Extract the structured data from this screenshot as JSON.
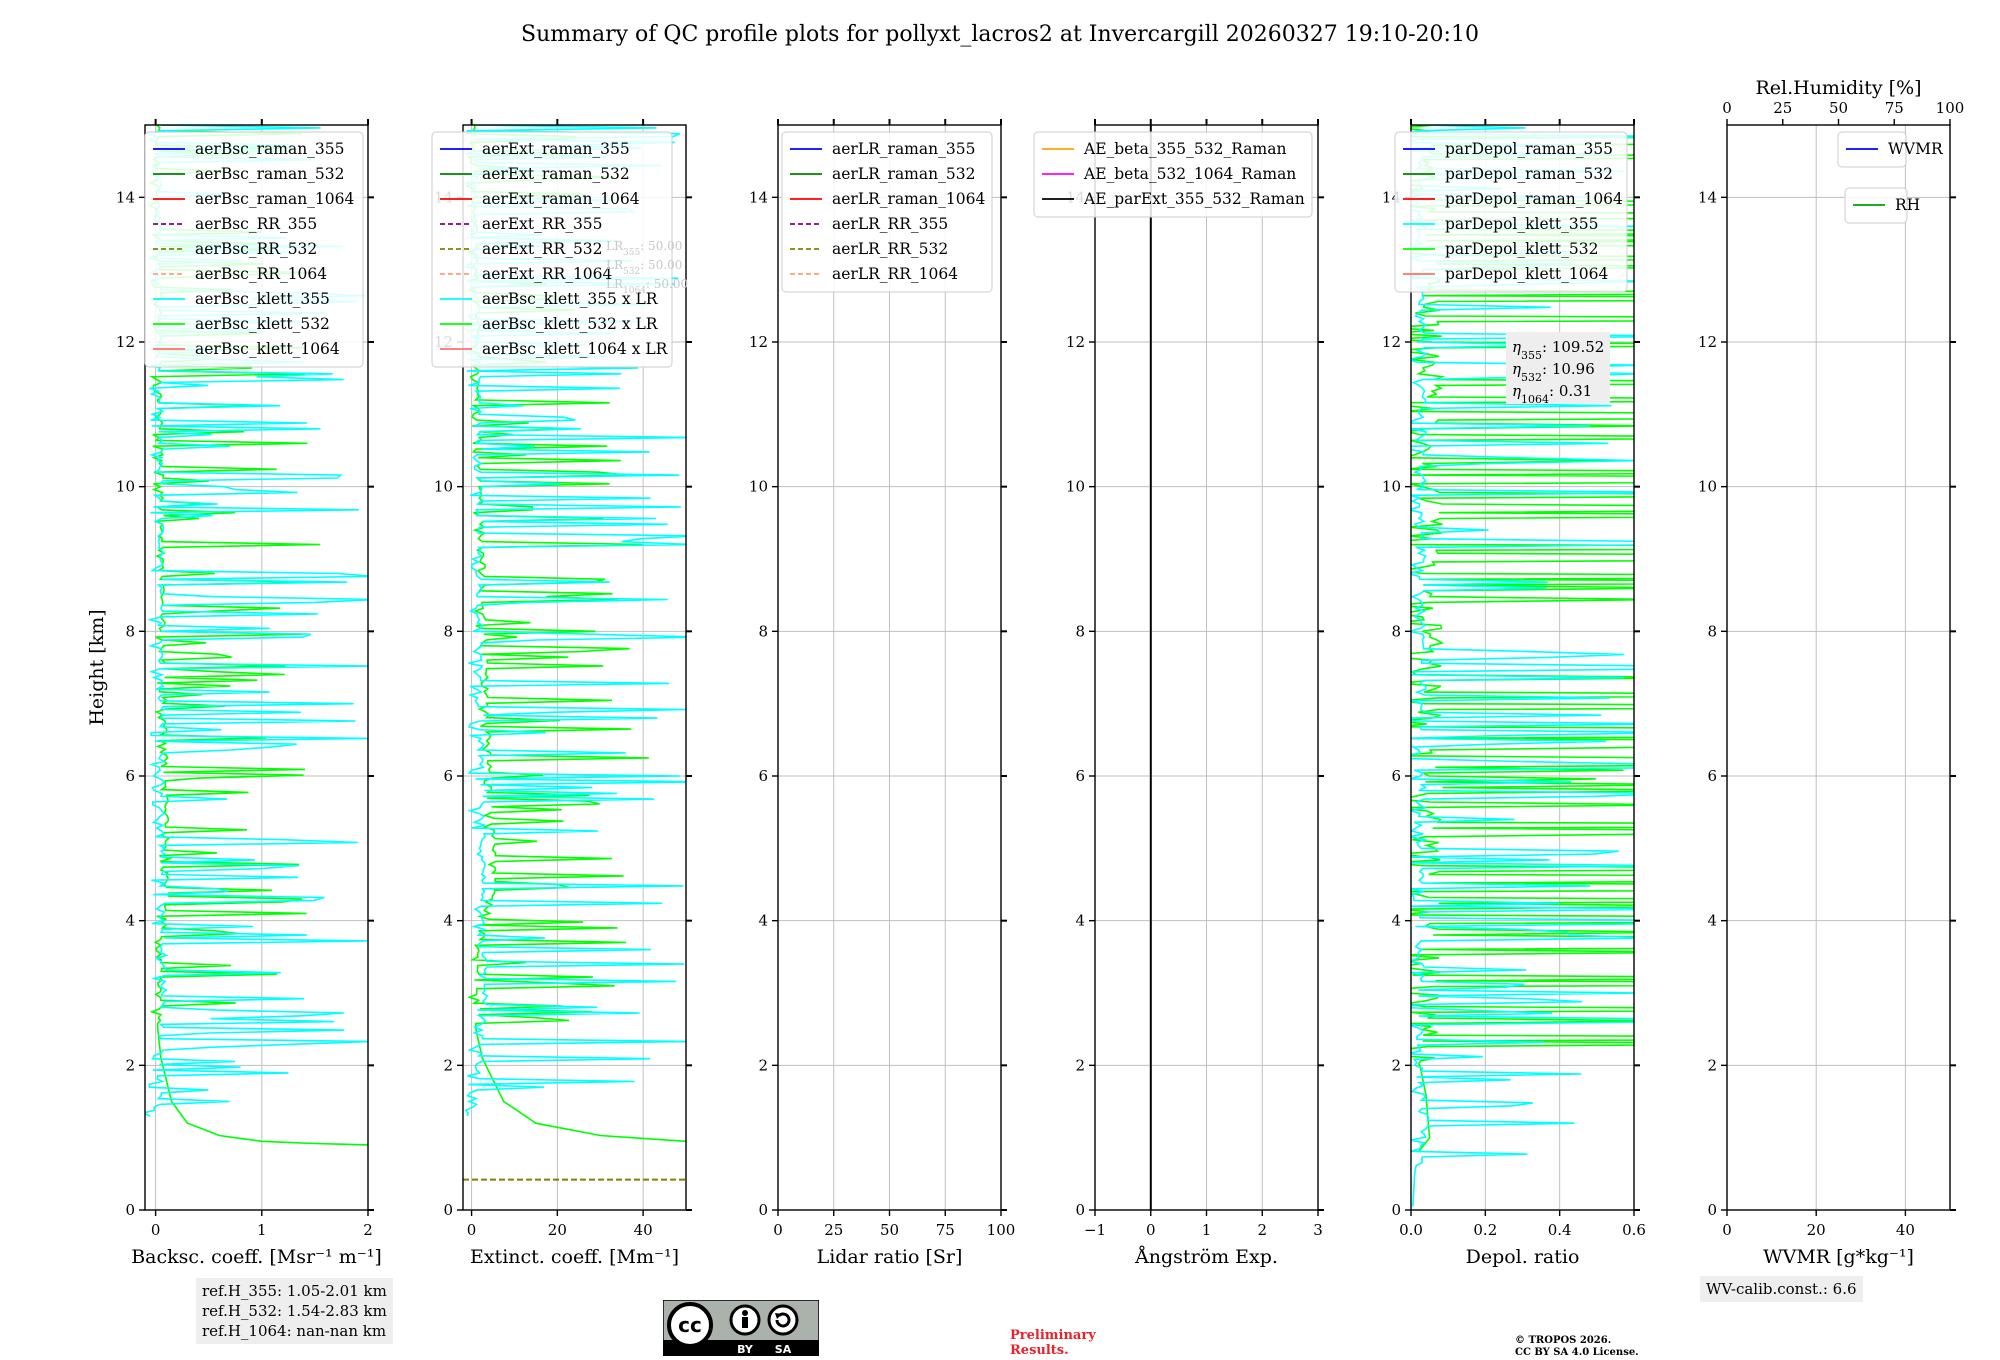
{
  "title": "Summary of QC profile plots for pollyxt_lacros2 at Invercargill 20260327 19:10-20:10",
  "colors": {
    "raman_355": "#0000ff",
    "raman_532": "#008000",
    "raman_1064": "#ff0000",
    "rr_355": "#800080",
    "rr_532": "#808000",
    "rr_1064": "#ffa07a",
    "klett_355": "#00ffff",
    "klett_532": "#00ff00",
    "klett_1064": "#ff6f6f",
    "ae1": "#ffa500",
    "ae2": "#ff00ff",
    "ae3": "#000000",
    "wvmr": "#0000ff",
    "rh": "#00a000",
    "grid": "#bfbfbf",
    "infobox": "#eeeeee",
    "prelim": "#e8222a"
  },
  "chart_data": [
    {
      "type": "line",
      "id": "bsc",
      "ylabel": "Height [km]",
      "ylim": [
        0,
        15
      ],
      "yticks": [
        0,
        2,
        4,
        6,
        8,
        10,
        12,
        14
      ],
      "xlabel": "Backsc. coeff. [Msr⁻¹ m⁻¹]",
      "xlim": [
        -0.1,
        2
      ],
      "xticks": [
        0,
        1,
        2
      ],
      "xticklabels": [
        "0",
        "1",
        "2"
      ],
      "legend": [
        {
          "label": "aerBsc_raman_355",
          "color": "raman_355",
          "dash": false
        },
        {
          "label": "aerBsc_raman_532",
          "color": "raman_532",
          "dash": false
        },
        {
          "label": "aerBsc_raman_1064",
          "color": "raman_1064",
          "dash": false
        },
        {
          "label": "aerBsc_RR_355",
          "color": "rr_355",
          "dash": true
        },
        {
          "label": "aerBsc_RR_532",
          "color": "rr_532",
          "dash": true
        },
        {
          "label": "aerBsc_RR_1064",
          "color": "rr_1064",
          "dash": true
        },
        {
          "label": "aerBsc_klett_355",
          "color": "klett_355",
          "dash": false
        },
        {
          "label": "aerBsc_klett_532",
          "color": "klett_532",
          "dash": false
        },
        {
          "label": "aerBsc_klett_1064",
          "color": "klett_1064",
          "dash": false
        }
      ],
      "series": [
        {
          "name": "aerBsc_klett_532",
          "color": "klett_532",
          "noisy": true,
          "noise_from": 2.6,
          "noise_amp": 0.4,
          "points": [
            [
              0.0,
              15.0
            ],
            [
              0.02,
              12
            ],
            [
              0.05,
              8
            ],
            [
              0.1,
              4.5
            ],
            [
              0.02,
              3.5
            ],
            [
              0.02,
              2.5
            ],
            [
              0.05,
              2.1
            ],
            [
              0.1,
              1.8
            ],
            [
              0.15,
              1.5
            ],
            [
              0.3,
              1.2
            ],
            [
              0.6,
              1.03
            ],
            [
              1.0,
              0.95
            ],
            [
              1.5,
              0.92
            ],
            [
              2.0,
              0.9
            ]
          ]
        },
        {
          "name": "aerBsc_klett_355",
          "color": "klett_355",
          "noisy": true,
          "noise_from": 1.2,
          "noise_amp": 0.55,
          "points": [
            [
              0.0,
              15.0
            ],
            [
              0.02,
              10
            ],
            [
              0.03,
              6
            ],
            [
              0.05,
              3
            ],
            [
              0.0,
              1.5
            ],
            [
              -0.05,
              1.3
            ]
          ]
        }
      ],
      "info": [
        "ref.H_355: 1.05-2.01 km",
        "ref.H_532: 1.54-2.83 km",
        "ref.H_1064: nan-nan km"
      ]
    },
    {
      "type": "line",
      "id": "ext",
      "ylim": [
        0,
        15
      ],
      "yticks": [
        0,
        2,
        4,
        6,
        8,
        10,
        12,
        14
      ],
      "xlabel": "Extinct. coeff. [Mm⁻¹]",
      "xlim": [
        -2,
        50
      ],
      "xticks": [
        0,
        20,
        40
      ],
      "xticklabels": [
        "0",
        "20",
        "40"
      ],
      "legend": [
        {
          "label": "aerExt_raman_355",
          "color": "raman_355",
          "dash": false
        },
        {
          "label": "aerExt_raman_532",
          "color": "raman_532",
          "dash": false
        },
        {
          "label": "aerExt_raman_1064",
          "color": "raman_1064",
          "dash": false
        },
        {
          "label": "aerExt_RR_355",
          "color": "rr_355",
          "dash": true
        },
        {
          "label": "aerExt_RR_532",
          "color": "rr_532",
          "dash": true
        },
        {
          "label": "aerExt_RR_1064",
          "color": "rr_1064",
          "dash": true
        },
        {
          "label": "aerBsc_klett_355 x LR",
          "color": "klett_355",
          "dash": false
        },
        {
          "label": "aerBsc_klett_532 x LR",
          "color": "klett_532",
          "dash": false
        },
        {
          "label": "aerBsc_klett_1064 x LR",
          "color": "klett_1064",
          "dash": false
        }
      ],
      "lr_labels": [
        {
          "sub": "355",
          "val": "50.00"
        },
        {
          "sub": "532",
          "val": "50.00"
        },
        {
          "sub": "1064",
          "val": "50.00"
        }
      ],
      "series": [
        {
          "name": "aerBsc_klett_532 x LR",
          "color": "klett_532",
          "noisy": true,
          "noise_from": 2.6,
          "noise_amp": 10,
          "points": [
            [
              0,
              15
            ],
            [
              1,
              12
            ],
            [
              2.5,
              8
            ],
            [
              5,
              4.5
            ],
            [
              1,
              3.5
            ],
            [
              1,
              2.5
            ],
            [
              2.5,
              2.1
            ],
            [
              5,
              1.8
            ],
            [
              7.5,
              1.5
            ],
            [
              15,
              1.2
            ],
            [
              30,
              1.03
            ],
            [
              50,
              0.95
            ]
          ]
        },
        {
          "name": "aerBsc_klett_355 x LR",
          "color": "klett_355",
          "noisy": true,
          "noise_from": 1.2,
          "noise_amp": 14,
          "points": [
            [
              0,
              15
            ],
            [
              1,
              10
            ],
            [
              1.5,
              6
            ],
            [
              2.5,
              3
            ],
            [
              0,
              1.5
            ],
            [
              -1,
              1.3
            ]
          ]
        },
        {
          "name": "aerExt_RR_532",
          "color": "rr_532",
          "dash": true,
          "noisy": false,
          "points": [
            [
              -2,
              0.42
            ],
            [
              50,
              0.42
            ]
          ]
        }
      ]
    },
    {
      "type": "line",
      "id": "lr",
      "ylim": [
        0,
        15
      ],
      "yticks": [
        0,
        2,
        4,
        6,
        8,
        10,
        12,
        14
      ],
      "xlabel": "Lidar ratio [Sr]",
      "xlim": [
        0,
        100
      ],
      "xticks": [
        0,
        25,
        50,
        75,
        100
      ],
      "xticklabels": [
        "0",
        "25",
        "50",
        "75",
        "100"
      ],
      "legend": [
        {
          "label": "aerLR_raman_355",
          "color": "raman_355",
          "dash": false
        },
        {
          "label": "aerLR_raman_532",
          "color": "raman_532",
          "dash": false
        },
        {
          "label": "aerLR_raman_1064",
          "color": "raman_1064",
          "dash": false
        },
        {
          "label": "aerLR_RR_355",
          "color": "rr_355",
          "dash": true
        },
        {
          "label": "aerLR_RR_532",
          "color": "rr_532",
          "dash": true
        },
        {
          "label": "aerLR_RR_1064",
          "color": "rr_1064",
          "dash": true
        }
      ],
      "series": []
    },
    {
      "type": "line",
      "id": "ae",
      "ylim": [
        0,
        15
      ],
      "yticks": [
        0,
        2,
        4,
        6,
        8,
        10,
        12,
        14
      ],
      "xlabel": "Ångström Exp.",
      "xlim": [
        -1,
        3
      ],
      "xticks": [
        -1,
        0,
        1,
        2,
        3
      ],
      "xticklabels": [
        "−1",
        "0",
        "1",
        "2",
        "3"
      ],
      "legend": [
        {
          "label": "AE_beta_355_532_Raman",
          "color": "ae1",
          "dash": false
        },
        {
          "label": "AE_beta_532_1064_Raman",
          "color": "ae2",
          "dash": false
        },
        {
          "label": "AE_parExt_355_532_Raman",
          "color": "ae3",
          "dash": false
        }
      ],
      "series": [
        {
          "name": "zero line",
          "color": "ae3",
          "noisy": false,
          "points": [
            [
              0,
              0
            ],
            [
              0,
              15
            ]
          ]
        }
      ]
    },
    {
      "type": "line",
      "id": "depol",
      "ylim": [
        0,
        15
      ],
      "yticks": [
        0,
        2,
        4,
        6,
        8,
        10,
        12,
        14
      ],
      "xlabel": "Depol. ratio",
      "xlim": [
        0,
        0.6
      ],
      "xticks": [
        0,
        0.2,
        0.4,
        0.6
      ],
      "xticklabels": [
        "0.0",
        "0.2",
        "0.4",
        "0.6"
      ],
      "legend": [
        {
          "label": "parDepol_raman_355",
          "color": "raman_355",
          "dash": false
        },
        {
          "label": "parDepol_raman_532",
          "color": "raman_532",
          "dash": false
        },
        {
          "label": "parDepol_raman_1064",
          "color": "raman_1064",
          "dash": false
        },
        {
          "label": "parDepol_klett_355",
          "color": "klett_355",
          "dash": false
        },
        {
          "label": "parDepol_klett_532",
          "color": "klett_532",
          "dash": false
        },
        {
          "label": "parDepol_klett_1064",
          "color": "klett_1064",
          "dash": false
        }
      ],
      "eta": [
        {
          "sub": "355",
          "val": "109.52"
        },
        {
          "sub": "532",
          "val": "10.96"
        },
        {
          "sub": "1064",
          "val": "0.31"
        }
      ],
      "series": [
        {
          "name": "parDepol_klett_532",
          "color": "klett_532",
          "noisy": true,
          "noise_from": 2.0,
          "noise_amp": 0.55,
          "points": [
            [
              0.02,
              15
            ],
            [
              0.03,
              12
            ],
            [
              0.03,
              8
            ],
            [
              0.03,
              4
            ],
            [
              0.02,
              2.1
            ],
            [
              0.04,
              1.6
            ],
            [
              0.05,
              1.0
            ],
            [
              0.02,
              0.8
            ]
          ]
        },
        {
          "name": "parDepol_klett_355",
          "color": "klett_355",
          "noisy": true,
          "noise_from": 0.6,
          "noise_amp": 0.2,
          "points": [
            [
              0.01,
              15
            ],
            [
              0.02,
              12
            ],
            [
              0.02,
              8
            ],
            [
              0.02,
              4
            ],
            [
              0.01,
              2
            ],
            [
              0.03,
              1.2
            ],
            [
              0.01,
              0.5
            ],
            [
              0.005,
              0.05
            ]
          ]
        }
      ]
    },
    {
      "type": "line",
      "id": "wv",
      "ylim": [
        0,
        15
      ],
      "yticks": [
        0,
        2,
        4,
        6,
        8,
        10,
        12,
        14
      ],
      "xlabel": "WVMR [g*kg⁻¹]",
      "xlim": [
        0,
        50
      ],
      "xticks": [
        0,
        20,
        40
      ],
      "xticklabels": [
        "0",
        "20",
        "40"
      ],
      "top_xlabel": "Rel.Humidity [%]",
      "top_xlim": [
        0,
        100
      ],
      "top_xticks": [
        0,
        25,
        50,
        75,
        100
      ],
      "top_xticklabels": [
        "0",
        "25",
        "50",
        "75",
        "100"
      ],
      "legend": [
        {
          "label": "WVMR",
          "color": "wvmr",
          "dash": false
        }
      ],
      "legend2": [
        {
          "label": "RH",
          "color": "rh",
          "dash": false
        }
      ],
      "series": [],
      "info": [
        "WV-calib.const.: 6.6"
      ]
    }
  ],
  "footer": {
    "cc_by": "BY",
    "cc_sa": "SA",
    "cc_mark": "cc",
    "prelim_line1": "Preliminary",
    "prelim_line2": "Results.",
    "copyright_line1": "© TROPOS 2026.",
    "copyright_line2": "CC BY SA 4.0 License."
  }
}
